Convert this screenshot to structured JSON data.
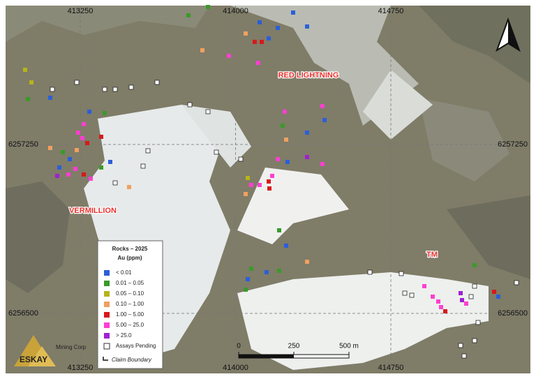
{
  "map": {
    "grid_labels": {
      "top": [
        413250,
        414000,
        414750
      ],
      "bottom": [
        413250,
        414000,
        414750
      ],
      "left": [
        6257250,
        6256500
      ],
      "right": [
        6257250,
        6256500
      ]
    },
    "places": [
      "RED LIGHTNING",
      "VERMILLION",
      "TM"
    ],
    "legend": {
      "title": "Rocks – 2025",
      "subtitle": "Au (ppm)",
      "items": [
        {
          "label": "< 0.01",
          "color": "#2b5fd9"
        },
        {
          "label": "0.01 – 0.05",
          "color": "#3a9a2a"
        },
        {
          "label": "0.05 – 0.10",
          "color": "#b5b51a"
        },
        {
          "label": "0.10 – 1.00",
          "color": "#f0a060"
        },
        {
          "label": "1.00 – 5.00",
          "color": "#d7191c"
        },
        {
          "label": "5.00 – 25.0",
          "color": "#ff3fd0"
        },
        {
          "label": "> 25.0",
          "color": "#a020d0"
        },
        {
          "label": "Assays Pending",
          "color": "#ffffff"
        }
      ],
      "claim_boundary": "Claim Boundary"
    },
    "scale_bar": {
      "ticks": [
        0,
        250,
        {
          "value": 500,
          "label": "500 m"
        }
      ]
    },
    "logo": {
      "name": "ESKAY",
      "company": "Mining Corp"
    }
  }
}
